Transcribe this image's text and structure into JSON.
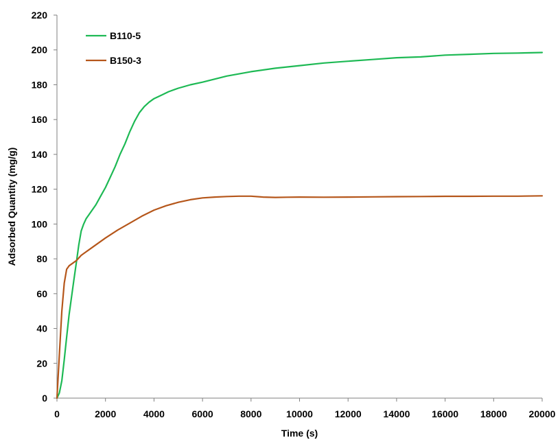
{
  "chart_data": {
    "type": "line",
    "title": "",
    "xlabel": "Time (s)",
    "ylabel": "Adsorbed Quantity (mg/g)",
    "xlim": [
      0,
      20000
    ],
    "ylim": [
      0,
      220
    ],
    "xticks": [
      0,
      2000,
      4000,
      6000,
      8000,
      10000,
      12000,
      14000,
      16000,
      18000,
      20000
    ],
    "yticks": [
      0,
      20,
      40,
      60,
      80,
      100,
      120,
      140,
      160,
      180,
      200,
      220
    ],
    "grid": false,
    "legend_position": "top-left",
    "series": [
      {
        "name": "B110-5",
        "color": "#1db954",
        "x": [
          0,
          100,
          200,
          300,
          400,
          500,
          600,
          700,
          800,
          900,
          1000,
          1100,
          1200,
          1400,
          1600,
          1800,
          2000,
          2200,
          2400,
          2600,
          2800,
          3000,
          3200,
          3400,
          3600,
          3800,
          4000,
          4300,
          4600,
          5000,
          5500,
          6000,
          7000,
          8000,
          9000,
          10000,
          11000,
          12000,
          13000,
          14000,
          15000,
          16000,
          17000,
          18000,
          19000,
          20000
        ],
        "y": [
          0,
          3,
          10,
          22,
          35,
          48,
          58,
          68,
          78,
          88,
          96,
          100,
          103,
          107,
          111,
          116,
          121,
          127,
          133,
          140,
          146,
          153,
          159,
          164,
          167.5,
          170,
          172,
          174,
          176,
          178,
          180,
          181.5,
          185,
          187.5,
          189.5,
          191,
          192.5,
          193.5,
          194.5,
          195.5,
          196,
          197,
          197.5,
          198,
          198.2,
          198.5
        ]
      },
      {
        "name": "B150-3",
        "color": "#b5561a",
        "x": [
          0,
          100,
          200,
          300,
          400,
          500,
          600,
          700,
          800,
          1000,
          1200,
          1500,
          2000,
          2500,
          3000,
          3500,
          4000,
          4500,
          5000,
          5500,
          6000,
          6500,
          7000,
          7500,
          8000,
          8500,
          9000,
          9500,
          10000,
          11000,
          12000,
          13000,
          14000,
          15000,
          16000,
          17000,
          18000,
          19000,
          20000
        ],
        "y": [
          0,
          25,
          50,
          66,
          74,
          76,
          77,
          78,
          79,
          82,
          84,
          87,
          92,
          96.5,
          100.5,
          104.5,
          108,
          110.5,
          112.5,
          114,
          115,
          115.5,
          115.8,
          116,
          116,
          115.5,
          115.3,
          115.4,
          115.5,
          115.4,
          115.5,
          115.6,
          115.7,
          115.8,
          115.9,
          115.9,
          116,
          116,
          116.2
        ]
      }
    ]
  }
}
